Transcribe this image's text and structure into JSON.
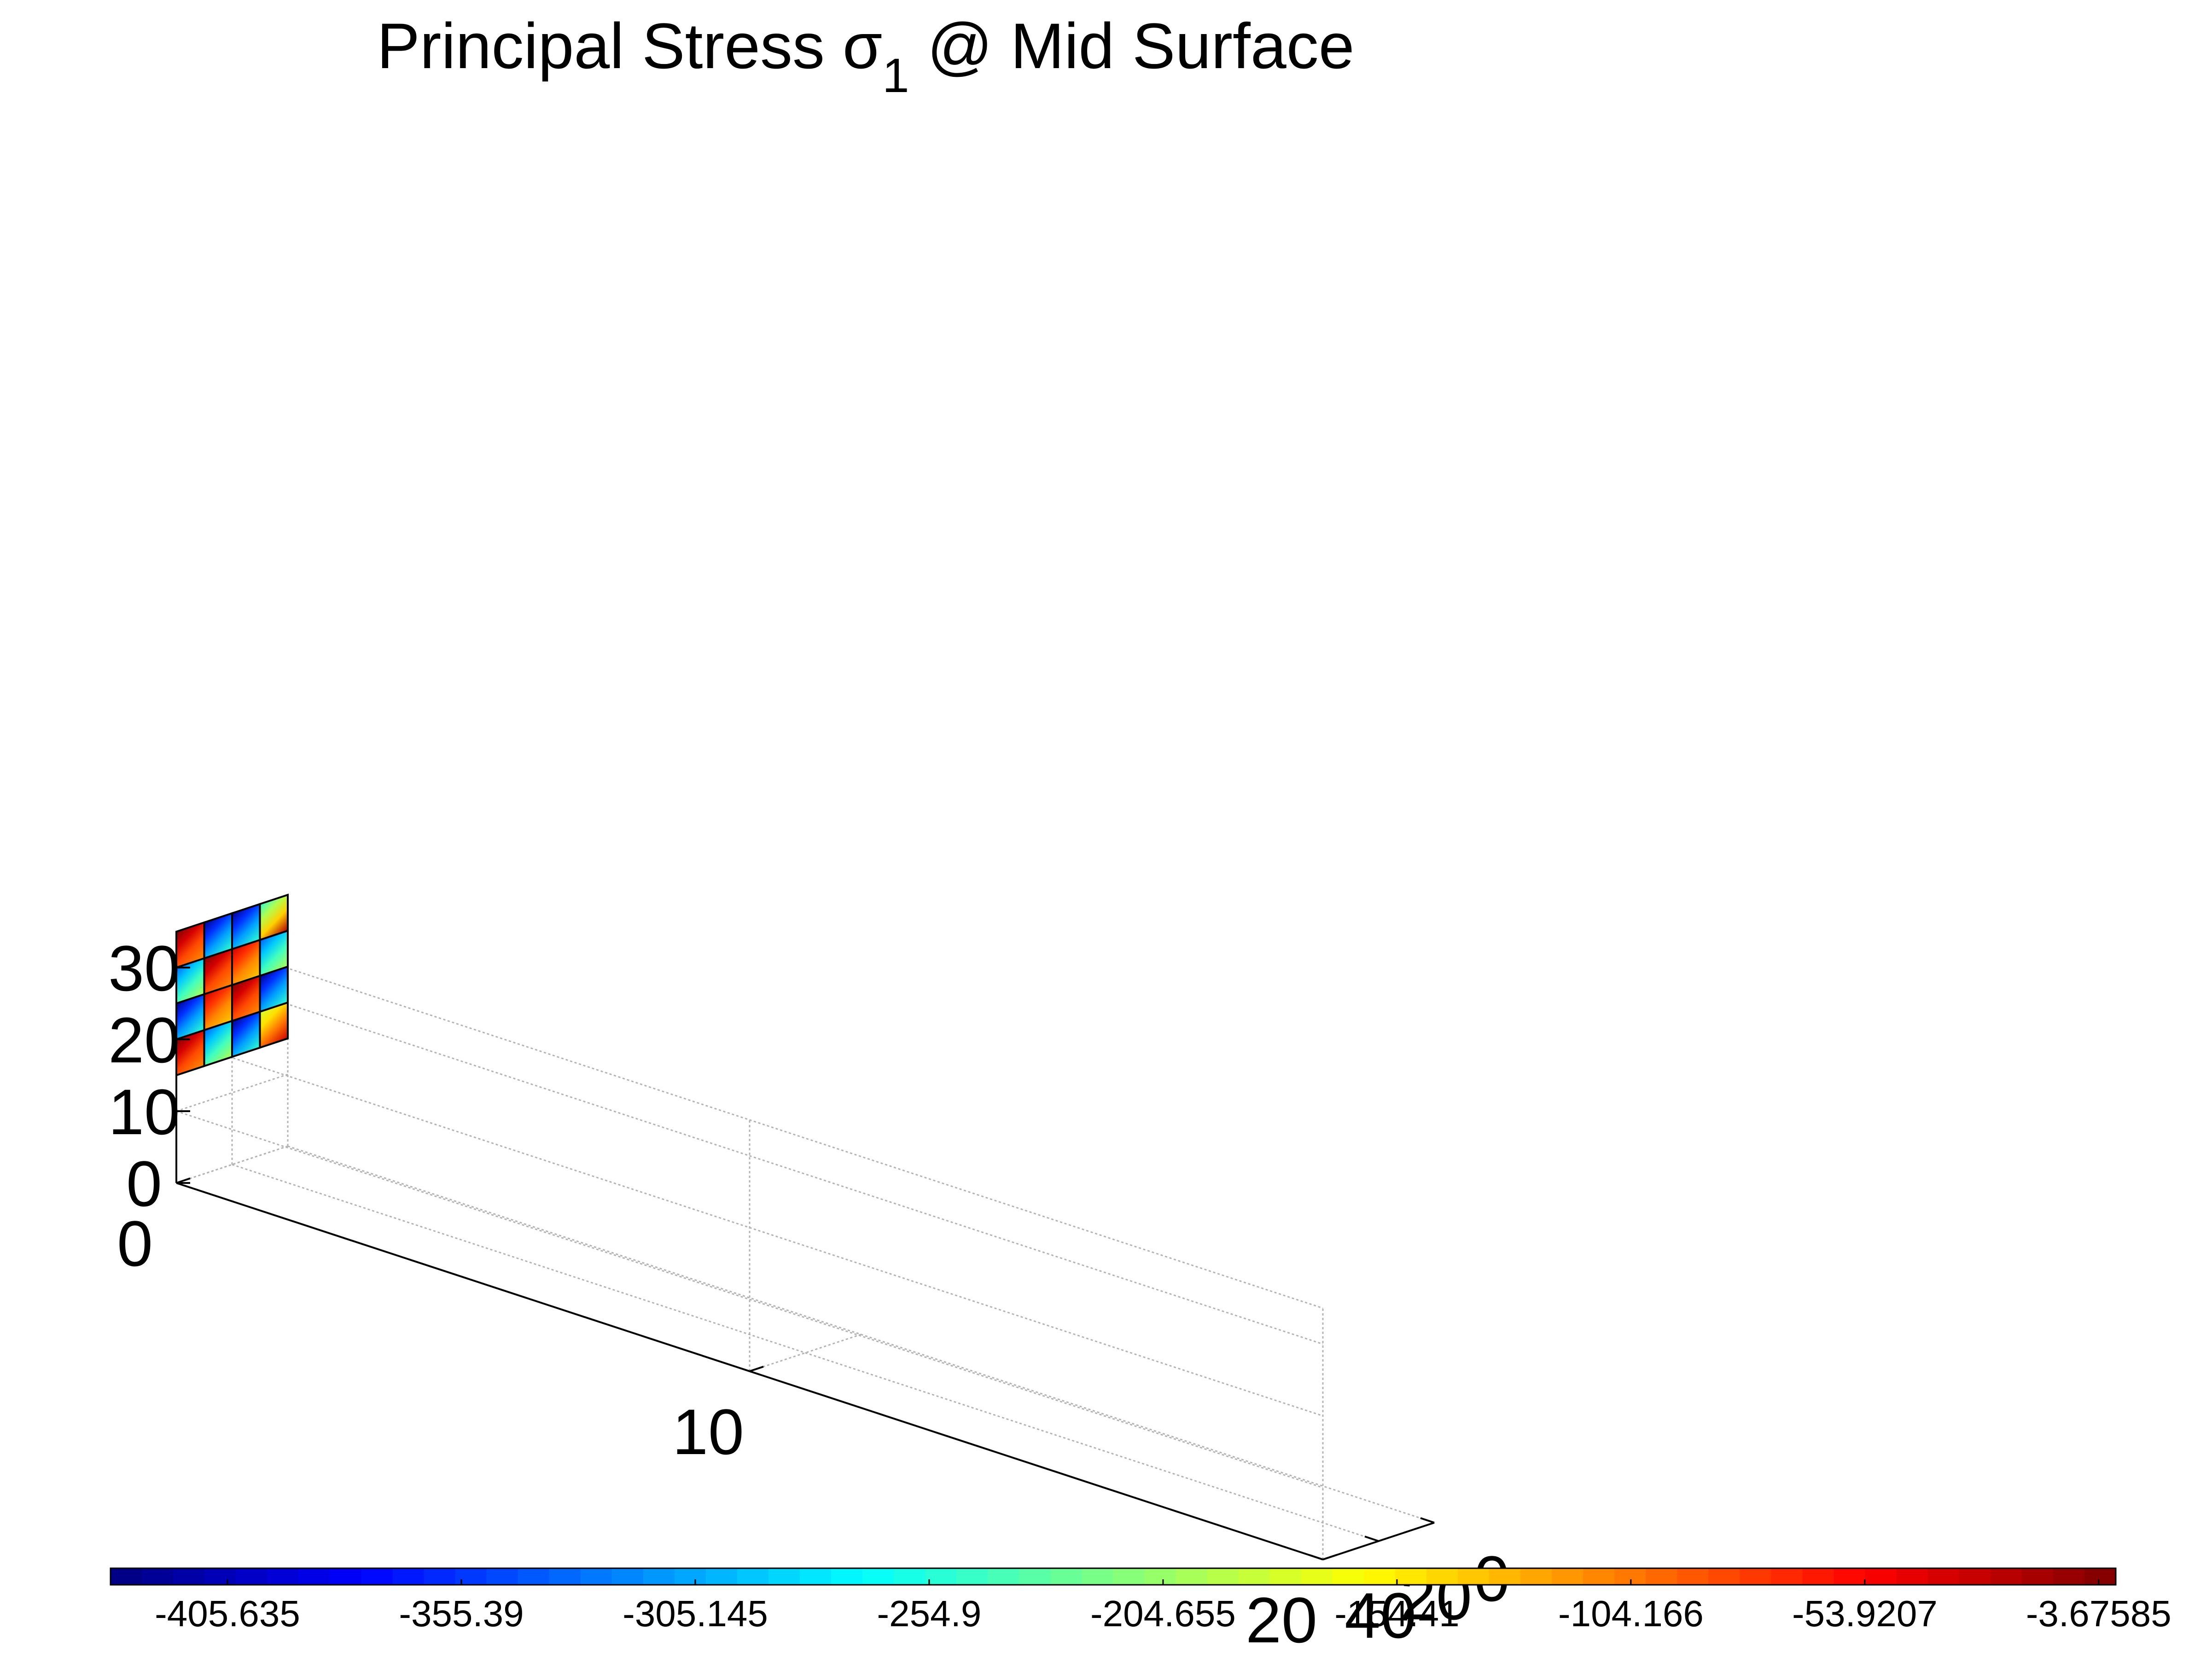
{
  "chart_data": {
    "type": "3d-surface",
    "title": {
      "prefix": "Principal Stress ",
      "symbol": "σ",
      "subscript": "1",
      "suffix": " @ Mid Surface"
    },
    "view": "isometric 3D",
    "grid": true,
    "axes": {
      "x": {
        "ticks": [
          "0",
          "10",
          "20"
        ],
        "ticks_values": [
          0,
          10,
          20
        ],
        "range": [
          0,
          20
        ]
      },
      "y": {
        "ticks": [
          "0",
          "20",
          "40"
        ],
        "ticks_values": [
          0,
          20,
          40
        ],
        "range": [
          0,
          40
        ]
      },
      "z": {
        "ticks": [
          "0",
          "10",
          "20",
          "30"
        ],
        "ticks_values": [
          0,
          10,
          20,
          30
        ],
        "range": [
          0,
          35
        ]
      }
    },
    "plate": {
      "plane": "x = 0",
      "y_extent": [
        0,
        40
      ],
      "z_extent": [
        15,
        35
      ],
      "columns": 4,
      "rows": 4,
      "column_y_edges": [
        40,
        30,
        20,
        10,
        0
      ],
      "row_z_edges": [
        35,
        30,
        25,
        20,
        15
      ]
    },
    "elements": [
      [
        "red",
        "blue",
        "blue",
        "green"
      ],
      [
        "cyan",
        "red",
        "orange",
        "cyan"
      ],
      [
        "blue",
        "orange",
        "red",
        "blue"
      ],
      [
        "red",
        "cyan",
        "blue",
        "yellow"
      ]
    ],
    "colormap": "jet",
    "colorbar": {
      "location": "bottom",
      "range": [
        -430.757,
        0
      ],
      "levels": 64,
      "tick_labels": [
        "-405.635",
        "-355.39",
        "-305.145",
        "-254.9",
        "-204.655",
        "-154.41",
        "-104.166",
        "-53.9207",
        "-3.67585"
      ],
      "tick_values": [
        -405.635,
        -355.39,
        -305.145,
        -254.9,
        -204.655,
        -154.41,
        -104.166,
        -53.9207,
        -3.67585
      ]
    }
  }
}
